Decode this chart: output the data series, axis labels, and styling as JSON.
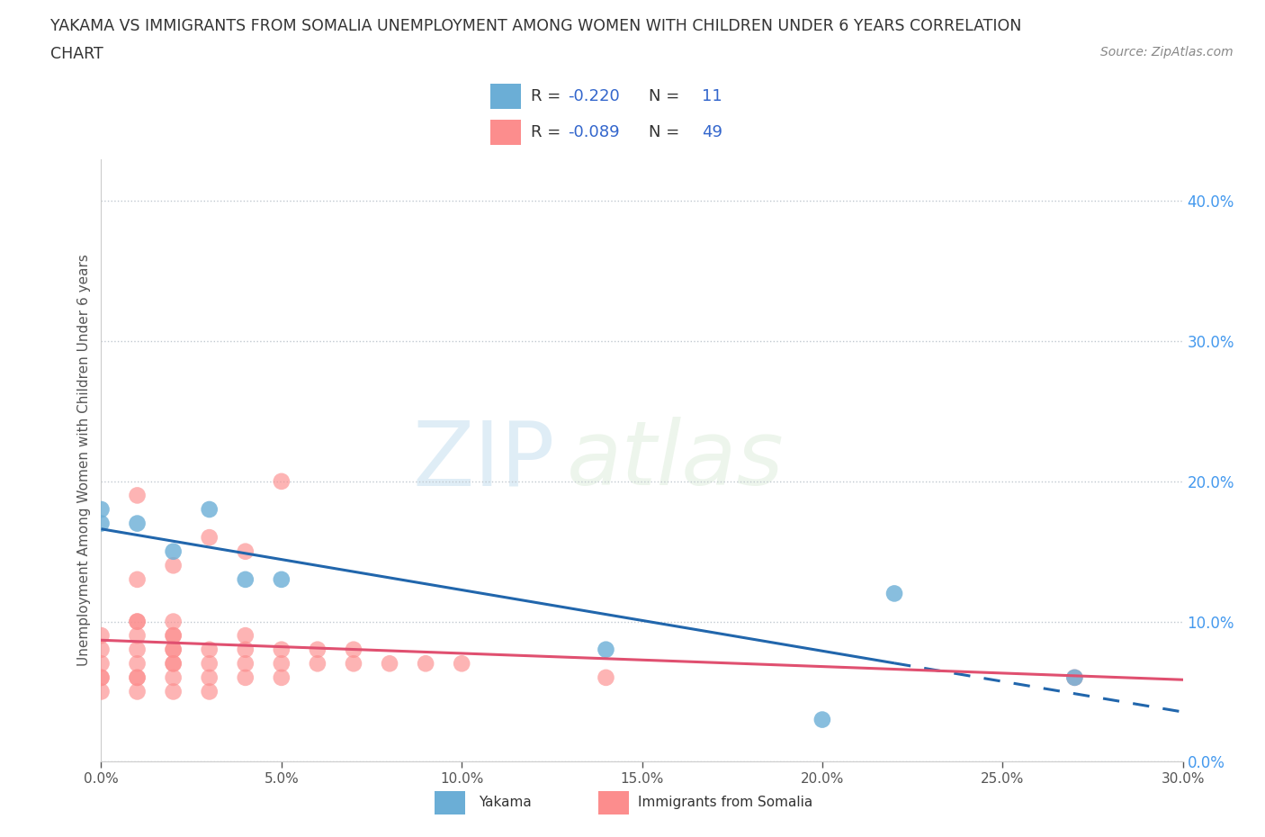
{
  "title_line1": "YAKAMA VS IMMIGRANTS FROM SOMALIA UNEMPLOYMENT AMONG WOMEN WITH CHILDREN UNDER 6 YEARS CORRELATION",
  "title_line2": "CHART",
  "source": "Source: ZipAtlas.com",
  "ylabel": "Unemployment Among Women with Children Under 6 years",
  "yakama_R": -0.22,
  "yakama_N": 11,
  "somalia_R": -0.089,
  "somalia_N": 49,
  "yakama_color": "#6baed6",
  "somalia_color": "#fc8d8d",
  "trend_blue": "#2166ac",
  "trend_pink": "#e05070",
  "yakama_scatter_x": [
    0.0,
    0.0,
    0.01,
    0.02,
    0.03,
    0.04,
    0.05,
    0.14,
    0.2,
    0.22,
    0.27
  ],
  "yakama_scatter_y": [
    0.17,
    0.18,
    0.17,
    0.15,
    0.18,
    0.13,
    0.13,
    0.08,
    0.03,
    0.12,
    0.06
  ],
  "somalia_scatter_x": [
    0.0,
    0.0,
    0.0,
    0.0,
    0.0,
    0.0,
    0.01,
    0.01,
    0.01,
    0.01,
    0.01,
    0.01,
    0.01,
    0.01,
    0.01,
    0.01,
    0.02,
    0.02,
    0.02,
    0.02,
    0.02,
    0.02,
    0.02,
    0.02,
    0.02,
    0.02,
    0.03,
    0.03,
    0.03,
    0.03,
    0.03,
    0.04,
    0.04,
    0.04,
    0.04,
    0.04,
    0.05,
    0.05,
    0.05,
    0.05,
    0.06,
    0.06,
    0.07,
    0.07,
    0.08,
    0.09,
    0.1,
    0.14,
    0.27
  ],
  "somalia_scatter_y": [
    0.05,
    0.06,
    0.06,
    0.07,
    0.08,
    0.09,
    0.05,
    0.06,
    0.06,
    0.07,
    0.08,
    0.09,
    0.1,
    0.1,
    0.13,
    0.19,
    0.05,
    0.06,
    0.07,
    0.07,
    0.08,
    0.08,
    0.09,
    0.09,
    0.1,
    0.14,
    0.05,
    0.06,
    0.07,
    0.08,
    0.16,
    0.06,
    0.07,
    0.08,
    0.09,
    0.15,
    0.06,
    0.07,
    0.08,
    0.2,
    0.07,
    0.08,
    0.07,
    0.08,
    0.07,
    0.07,
    0.07,
    0.06,
    0.06
  ],
  "xlim": [
    0.0,
    0.3
  ],
  "ylim": [
    0.0,
    0.43
  ],
  "xticks": [
    0.0,
    0.05,
    0.1,
    0.15,
    0.2,
    0.25,
    0.3
  ],
  "yticks": [
    0.0,
    0.1,
    0.2,
    0.3,
    0.4
  ],
  "watermark_zip": "ZIP",
  "watermark_atlas": "atlas",
  "bg_color": "#ffffff",
  "grid_color": "#c0c8d0",
  "title_color": "#333333",
  "label_color": "#555555",
  "tick_color_right": "#4499ee",
  "source_color": "#888888",
  "legend_r_color": "#3366cc",
  "legend_n_num_color": "#3366cc"
}
